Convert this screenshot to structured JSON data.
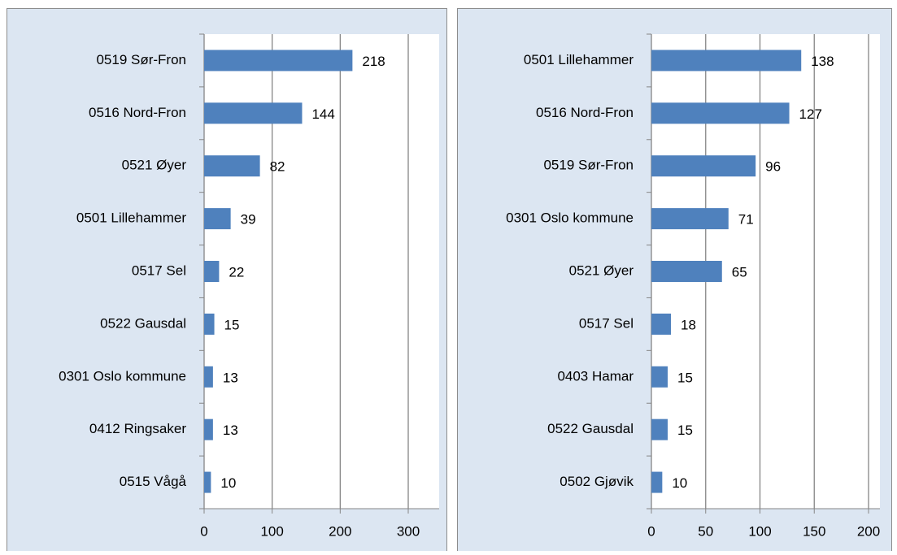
{
  "chart_data": [
    {
      "type": "bar",
      "orientation": "horizontal",
      "categories": [
        "0519 Sør-Fron",
        "0516 Nord-Fron",
        "0521 Øyer",
        "0501 Lillehammer",
        "0517 Sel",
        "0522 Gausdal",
        "0301 Oslo kommune",
        "0412 Ringsaker",
        "0515 Vågå"
      ],
      "values": [
        218,
        144,
        82,
        39,
        22,
        15,
        13,
        13,
        10
      ],
      "color": "#4f81bd",
      "xlim": [
        0,
        300
      ],
      "xticks": [
        0,
        100,
        200,
        300
      ],
      "grid": true
    },
    {
      "type": "bar",
      "orientation": "horizontal",
      "categories": [
        "0501 Lillehammer",
        "0516 Nord-Fron",
        "0519 Sør-Fron",
        "0301 Oslo kommune",
        "0521 Øyer",
        "0517 Sel",
        "0403 Hamar",
        "0522 Gausdal",
        "0502 Gjøvik"
      ],
      "values": [
        138,
        127,
        96,
        71,
        65,
        18,
        15,
        15,
        10
      ],
      "color": "#4f81bd",
      "xlim": [
        0,
        200
      ],
      "xticks": [
        0,
        50,
        100,
        150,
        200
      ],
      "grid": true
    }
  ]
}
